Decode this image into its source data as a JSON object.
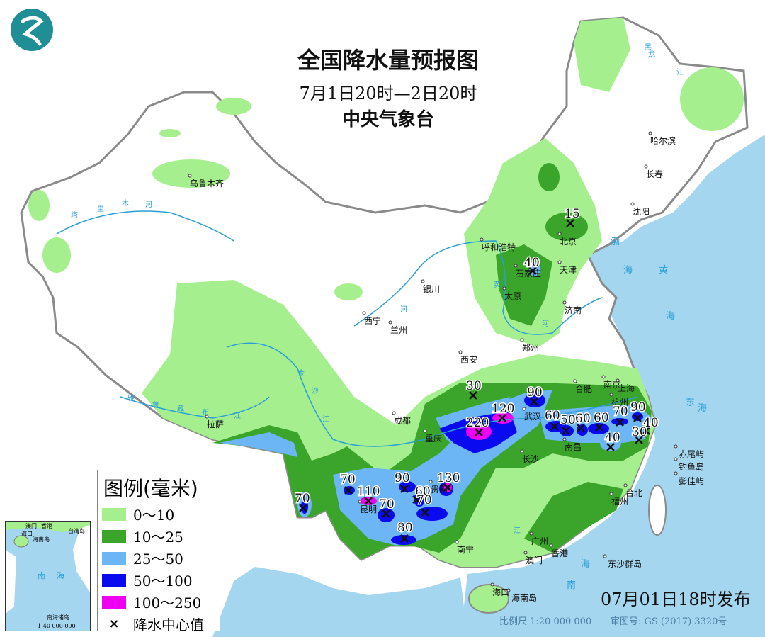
{
  "header": {
    "title": "全国降水量预报图",
    "period": "7月1日20时—2日20时",
    "issuer": "中央气象台"
  },
  "colors": {
    "sea": "#a5d6ef",
    "land": "#ffffff",
    "r0_10": "#a6ef8e",
    "r10_25": "#3aa52a",
    "r25_50": "#6cb6f6",
    "r50_100": "#0a0af0",
    "r100_250": "#f000f0",
    "border": "#9a9a9a",
    "river": "#2a9fd6"
  },
  "legend": {
    "title": "图例(毫米)",
    "items": [
      {
        "label": "0～10",
        "color": "#a6ef8e"
      },
      {
        "label": "10～25",
        "color": "#3aa52a"
      },
      {
        "label": "25～50",
        "color": "#6cb6f6"
      },
      {
        "label": "50～100",
        "color": "#0a0af0"
      },
      {
        "label": "100～250",
        "color": "#f000f0"
      }
    ],
    "center_symbol": "×",
    "center_label": "降水中心值"
  },
  "cities": [
    "乌鲁木齐",
    "哈尔滨",
    "长春",
    "沈阳",
    "呼和浩特",
    "北京",
    "天津",
    "石家庄",
    "太原",
    "济南",
    "银川",
    "西宁",
    "兰州",
    "郑州",
    "西安",
    "合肥",
    "南京",
    "上海",
    "杭州",
    "武汉",
    "成都",
    "重庆",
    "拉萨",
    "南昌",
    "长沙",
    "贵阳",
    "昆明",
    "福州",
    "台北",
    "南宁",
    "广州",
    "香港",
    "澳门",
    "海口",
    "海南岛",
    "赤尾屿",
    "钓鱼岛",
    "彭佳屿",
    "东沙群岛"
  ],
  "labels": {
    "seas": [
      "渤",
      "海",
      "黄",
      "海",
      "东",
      "海",
      "南",
      "海"
    ],
    "rivers": [
      "塔",
      "里",
      "木",
      "河",
      "黄",
      "河",
      "金",
      "沙",
      "江",
      "雅",
      "鲁",
      "藏",
      "布",
      "江",
      "黑",
      "龙",
      "江",
      "河",
      "江"
    ]
  },
  "precip_centers": [
    "15",
    "40",
    "30",
    "90",
    "120",
    "220",
    "60",
    "50",
    "60",
    "60",
    "70",
    "90",
    "40",
    "30",
    "40",
    "130",
    "90",
    "60",
    "70",
    "70",
    "110",
    "70",
    "70",
    "80"
  ],
  "inset": {
    "labels": [
      "澳门",
      "香港",
      "海口",
      "海南岛",
      "台湾岛",
      "南",
      "海",
      "南海诸岛"
    ],
    "scale": "1:40 000 000"
  },
  "footer": {
    "issued": "07月01日18时发布",
    "scale": "比例尺 1:20 000 000",
    "approval": "审图号: GS (2017) 3320号"
  }
}
